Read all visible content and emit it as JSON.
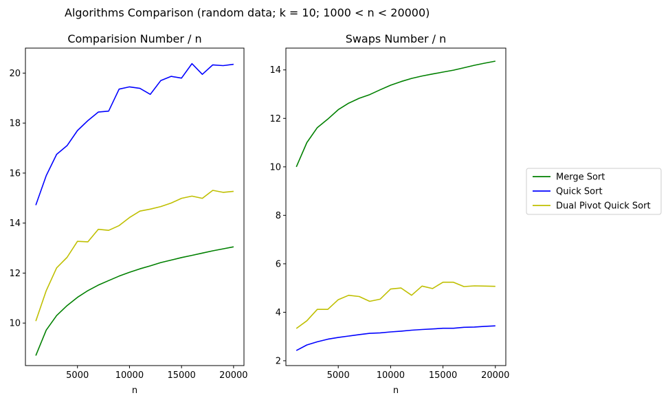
{
  "figure": {
    "suptitle": "Algorithms Comparison (random data;  k = 10;  1000 < n < 20000)"
  },
  "legend": {
    "placement": "right",
    "entries": [
      {
        "label": "Merge Sort",
        "color": "#008000"
      },
      {
        "label": "Quick Sort",
        "color": "#0000ff"
      },
      {
        "label": "Dual Pivot Quick Sort",
        "color": "#bfbf00"
      }
    ]
  },
  "chart_data": [
    {
      "type": "line",
      "title": "Comparision Number / n",
      "xlabel": "n",
      "ylabel": "",
      "xlim": [
        0,
        21000
      ],
      "ylim": [
        8.3,
        21.0
      ],
      "xticks": [
        5000,
        10000,
        15000,
        20000
      ],
      "yticks": [
        10,
        12,
        14,
        16,
        18,
        20
      ],
      "grid": false,
      "x": [
        1000,
        2000,
        3000,
        4000,
        5000,
        6000,
        7000,
        8000,
        9000,
        10000,
        11000,
        12000,
        13000,
        14000,
        15000,
        16000,
        17000,
        18000,
        19000,
        20000
      ],
      "series": [
        {
          "name": "Merge Sort",
          "color": "#008000",
          "values": [
            8.7,
            9.72,
            10.3,
            10.7,
            11.03,
            11.3,
            11.52,
            11.7,
            11.88,
            12.03,
            12.17,
            12.29,
            12.42,
            12.52,
            12.62,
            12.71,
            12.8,
            12.89,
            12.97,
            13.05
          ]
        },
        {
          "name": "Quick Sort",
          "color": "#0000ff",
          "values": [
            14.72,
            15.9,
            16.75,
            17.1,
            17.7,
            18.1,
            18.44,
            18.48,
            19.36,
            19.45,
            19.39,
            19.15,
            19.7,
            19.87,
            19.8,
            20.38,
            19.95,
            20.33,
            20.3,
            20.35
          ]
        },
        {
          "name": "Dual Pivot Quick Sort",
          "color": "#bfbf00",
          "values": [
            10.08,
            11.3,
            12.21,
            12.63,
            13.27,
            13.25,
            13.75,
            13.71,
            13.9,
            14.22,
            14.48,
            14.56,
            14.66,
            14.8,
            14.99,
            15.08,
            14.99,
            15.31,
            15.23,
            15.27
          ]
        }
      ]
    },
    {
      "type": "line",
      "title": "Swaps Number / n",
      "xlabel": "n",
      "ylabel": "",
      "xlim": [
        0,
        21000
      ],
      "ylim": [
        1.8,
        14.9
      ],
      "xticks": [
        5000,
        10000,
        15000,
        20000
      ],
      "yticks": [
        2,
        4,
        6,
        8,
        10,
        12,
        14
      ],
      "grid": false,
      "x": [
        1000,
        2000,
        3000,
        4000,
        5000,
        6000,
        7000,
        8000,
        9000,
        10000,
        11000,
        12000,
        13000,
        14000,
        15000,
        16000,
        17000,
        18000,
        19000,
        20000
      ],
      "series": [
        {
          "name": "Merge Sort",
          "color": "#008000",
          "values": [
            10.0,
            11.0,
            11.62,
            11.97,
            12.36,
            12.63,
            12.83,
            12.98,
            13.18,
            13.37,
            13.52,
            13.65,
            13.75,
            13.83,
            13.91,
            13.99,
            14.09,
            14.19,
            14.28,
            14.36
          ]
        },
        {
          "name": "Quick Sort",
          "color": "#0000ff",
          "values": [
            2.42,
            2.65,
            2.78,
            2.89,
            2.96,
            3.02,
            3.08,
            3.13,
            3.15,
            3.19,
            3.22,
            3.26,
            3.29,
            3.31,
            3.34,
            3.34,
            3.38,
            3.39,
            3.42,
            3.44
          ]
        },
        {
          "name": "Dual Pivot Quick Sort",
          "color": "#bfbf00",
          "values": [
            3.33,
            3.65,
            4.12,
            4.12,
            4.52,
            4.7,
            4.65,
            4.45,
            4.54,
            4.96,
            5.0,
            4.7,
            5.08,
            4.98,
            5.24,
            5.24,
            5.06,
            5.09,
            5.08,
            5.07
          ]
        }
      ]
    }
  ]
}
